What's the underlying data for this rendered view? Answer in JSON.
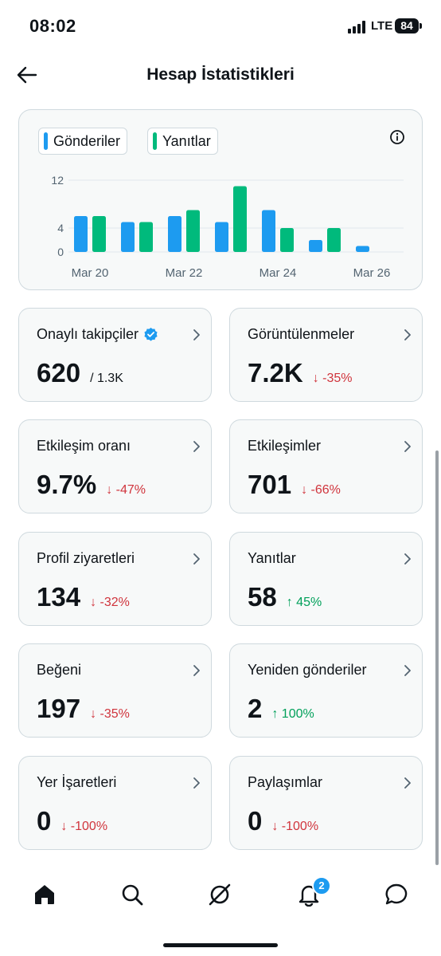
{
  "status_bar": {
    "time": "08:02",
    "network": "LTE",
    "battery": "84"
  },
  "header": {
    "title": "Hesap İstatistikleri"
  },
  "chart": {
    "legend": [
      {
        "label": "Gönderiler",
        "color": "#1d9bf0"
      },
      {
        "label": "Yanıtlar",
        "color": "#00ba7c"
      }
    ]
  },
  "chart_data": {
    "type": "bar",
    "categories": [
      "Mar 20",
      "Mar 21",
      "Mar 22",
      "Mar 23",
      "Mar 24",
      "Mar 25",
      "Mar 26"
    ],
    "x_tick_labels": [
      "Mar 20",
      "Mar 22",
      "Mar 24",
      "Mar 26"
    ],
    "y_ticks": [
      0,
      4,
      12
    ],
    "ylim": [
      0,
      12
    ],
    "series": [
      {
        "name": "Gönderiler",
        "color": "#1d9bf0",
        "values": [
          6,
          5,
          6,
          5,
          7,
          2,
          1
        ]
      },
      {
        "name": "Yanıtlar",
        "color": "#00ba7c",
        "values": [
          6,
          5,
          7,
          11,
          4,
          4,
          0
        ]
      }
    ],
    "grid": true,
    "legend_position": "top-left"
  },
  "stats": [
    {
      "label": "Onaylı takipçiler",
      "value": "620",
      "sub": "/ 1.3K",
      "verified": true
    },
    {
      "label": "Görüntülenmeler",
      "value": "7.2K",
      "change": "↓ -35%",
      "direction": "down"
    },
    {
      "label": "Etkileşim oranı",
      "value": "9.7%",
      "change": "↓ -47%",
      "direction": "down"
    },
    {
      "label": "Etkileşimler",
      "value": "701",
      "change": "↓ -66%",
      "direction": "down"
    },
    {
      "label": "Profil ziyaretleri",
      "value": "134",
      "change": "↓ -32%",
      "direction": "down"
    },
    {
      "label": "Yanıtlar",
      "value": "58",
      "change": "↑ 45%",
      "direction": "up"
    },
    {
      "label": "Beğeni",
      "value": "197",
      "change": "↓ -35%",
      "direction": "down"
    },
    {
      "label": "Yeniden gönderiler",
      "value": "2",
      "change": "↑ 100%",
      "direction": "up"
    },
    {
      "label": "Yer İşaretleri",
      "value": "0",
      "change": "↓ -100%",
      "direction": "down"
    },
    {
      "label": "Paylaşımlar",
      "value": "0",
      "change": "↓ -100%",
      "direction": "down"
    }
  ],
  "bottom_nav": {
    "items": [
      "home-icon",
      "search-icon",
      "grok-icon",
      "bell-icon",
      "messages-icon"
    ],
    "notification_count": "2"
  }
}
